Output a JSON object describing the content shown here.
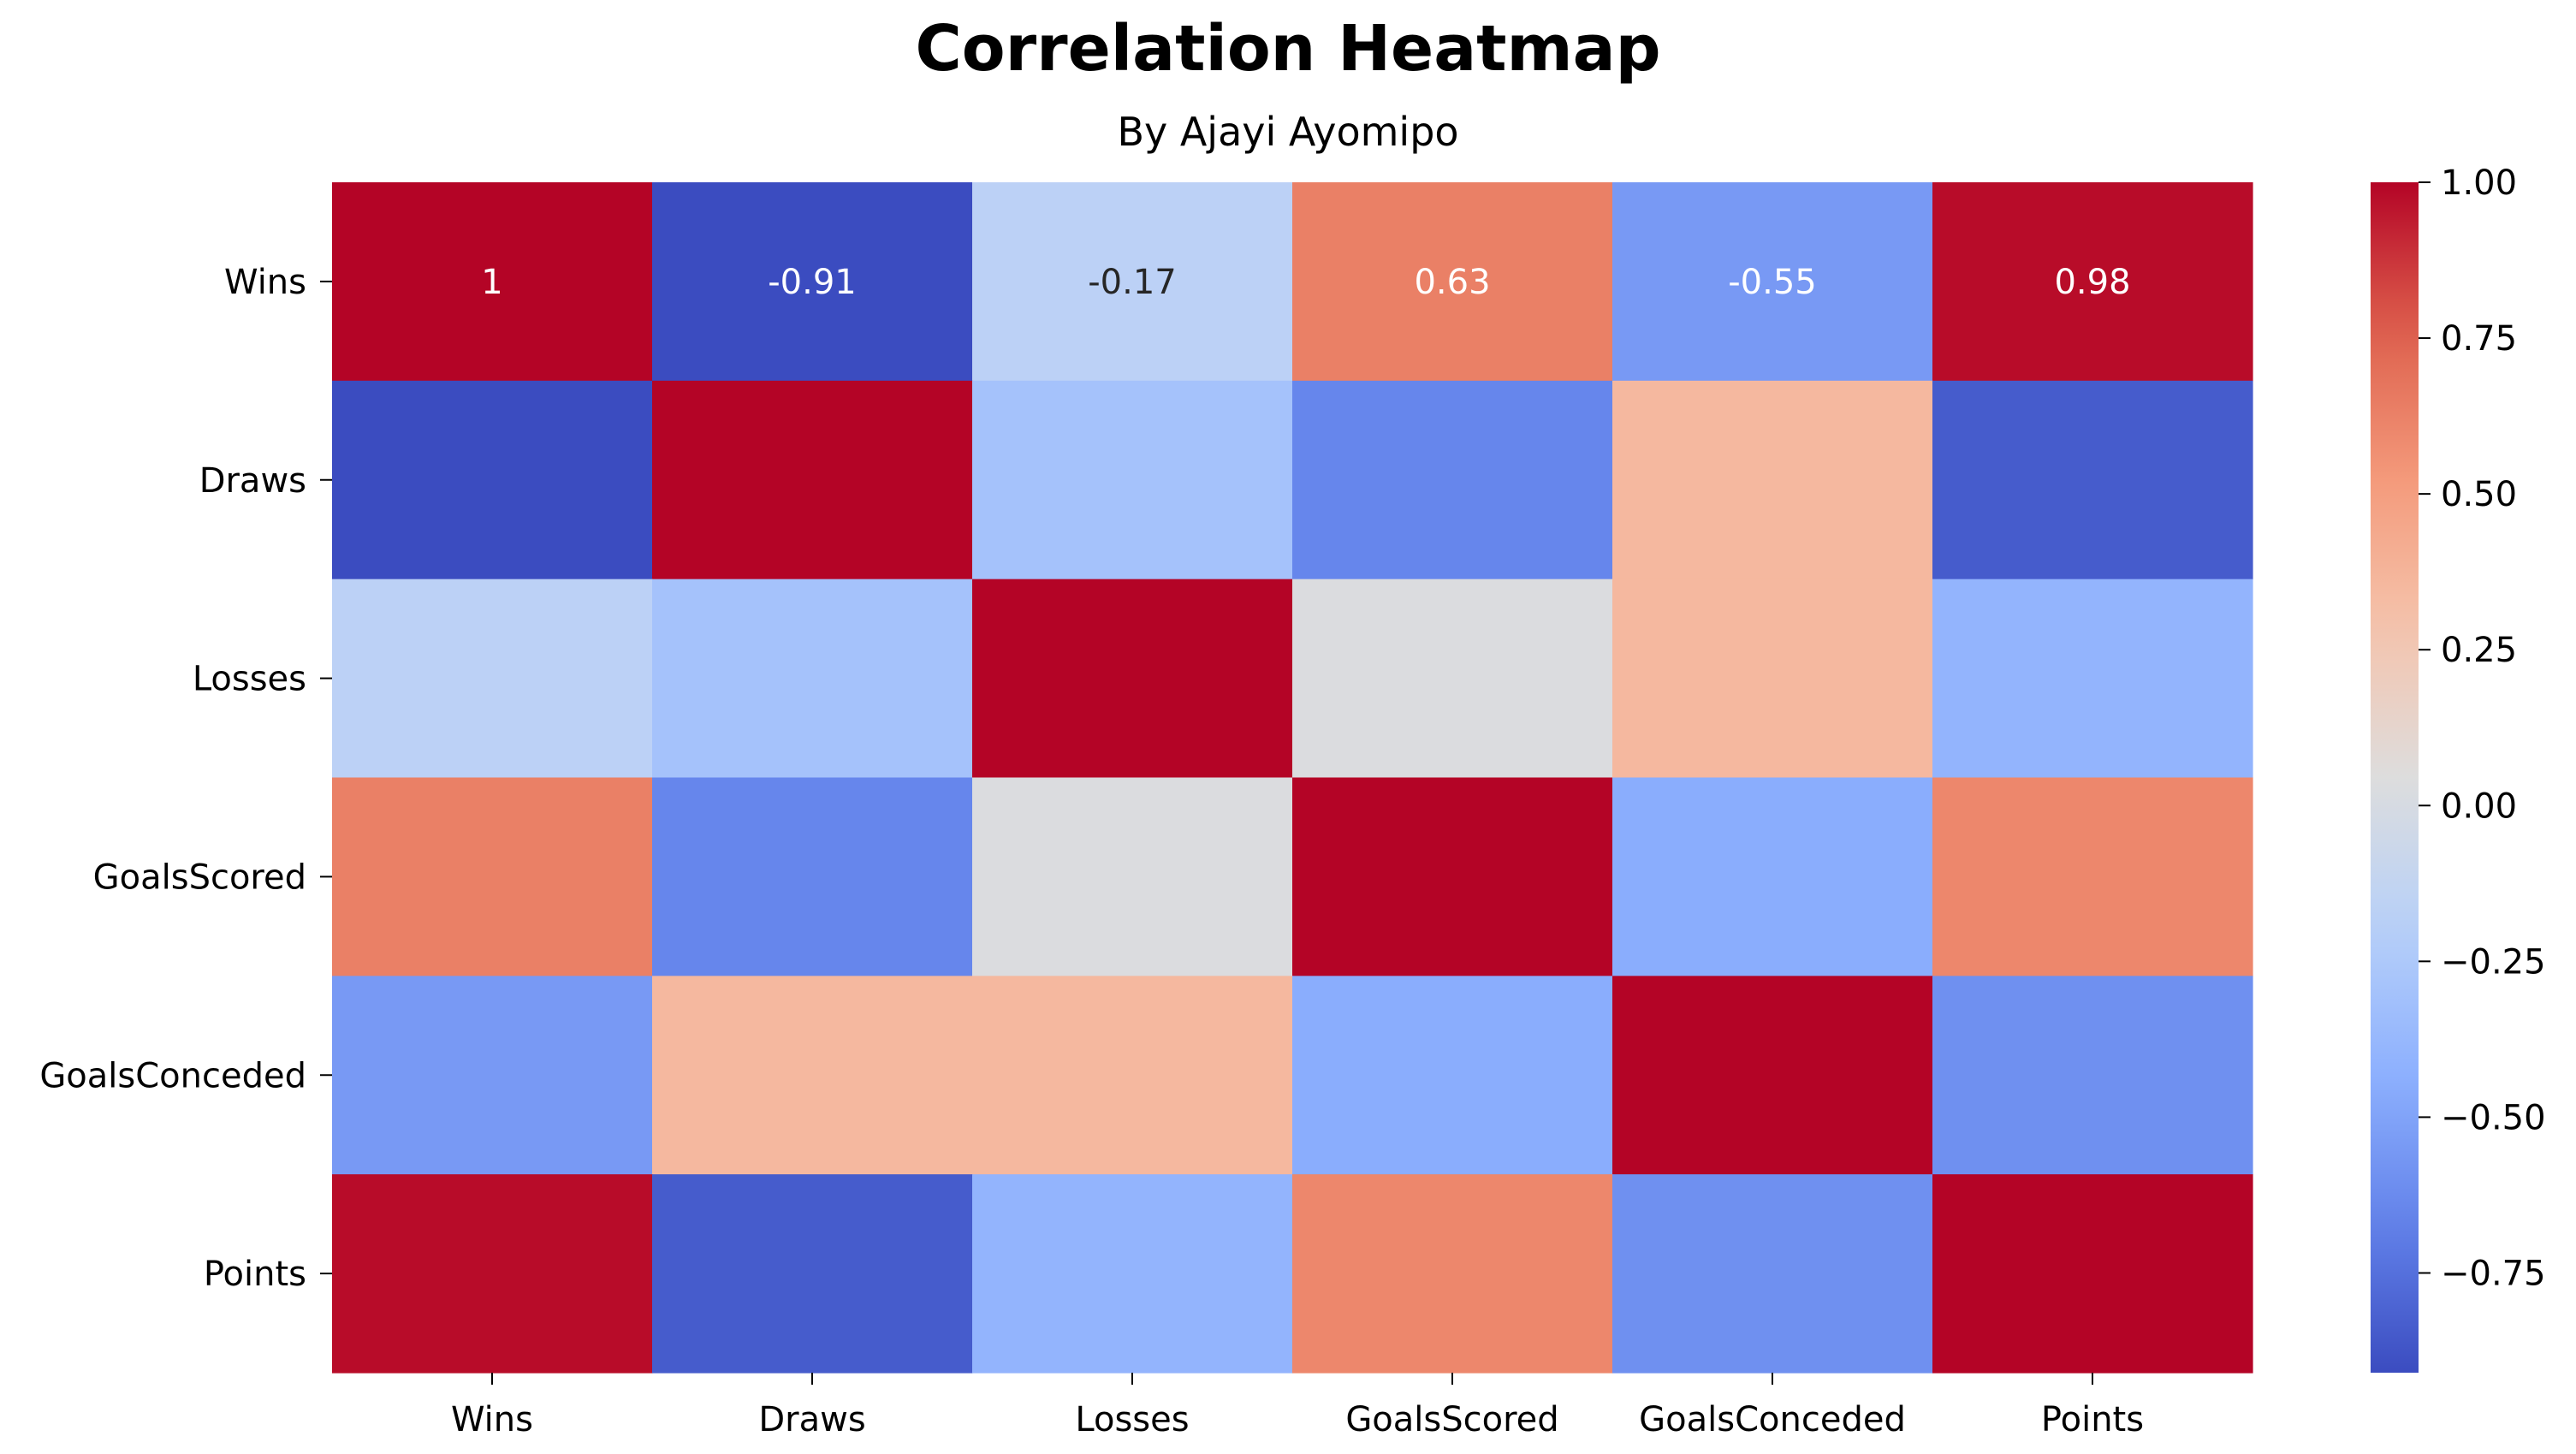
{
  "chart_data": {
    "type": "heatmap",
    "title": "Correlation Heatmap",
    "subtitle": "By Ajayi Ayomipo",
    "rows": [
      "Wins",
      "Draws",
      "Losses",
      "GoalsScored",
      "GoalsConceded",
      "Points"
    ],
    "columns": [
      "Wins",
      "Draws",
      "Losses",
      "GoalsScored",
      "GoalsConceded",
      "Points"
    ],
    "values": [
      [
        1.0,
        -0.91,
        -0.17,
        0.63,
        -0.55,
        0.98
      ],
      [
        -0.91,
        1.0,
        -0.3,
        -0.65,
        0.35,
        -0.84
      ],
      [
        -0.17,
        -0.3,
        1.0,
        0.03,
        0.35,
        -0.4
      ],
      [
        0.63,
        -0.65,
        0.03,
        1.0,
        -0.45,
        0.6
      ],
      [
        -0.55,
        0.35,
        0.35,
        -0.45,
        1.0,
        -0.6
      ],
      [
        0.98,
        -0.84,
        -0.4,
        0.6,
        -0.6,
        1.0
      ]
    ],
    "annotations": [
      [
        "1",
        "-0.91",
        "-0.17",
        "0.63",
        "-0.55",
        "0.98"
      ],
      [
        "",
        "",
        "",
        "",
        "",
        ""
      ],
      [
        "",
        "",
        "",
        "",
        "",
        ""
      ],
      [
        "",
        "",
        "",
        "",
        "",
        ""
      ],
      [
        "",
        "",
        "",
        "",
        "",
        ""
      ],
      [
        "",
        "",
        "",
        "",
        "",
        ""
      ]
    ],
    "colormap": "coolwarm",
    "colorbar": {
      "vmin": -0.91,
      "vmax": 1.0,
      "ticks": [
        1.0,
        0.75,
        0.5,
        0.25,
        0.0,
        -0.25,
        -0.5,
        -0.75
      ],
      "tick_labels": [
        "1.00",
        "0.75",
        "0.50",
        "0.25",
        "0.00",
        "−0.25",
        "−0.50",
        "−0.75"
      ]
    },
    "grid": false
  }
}
